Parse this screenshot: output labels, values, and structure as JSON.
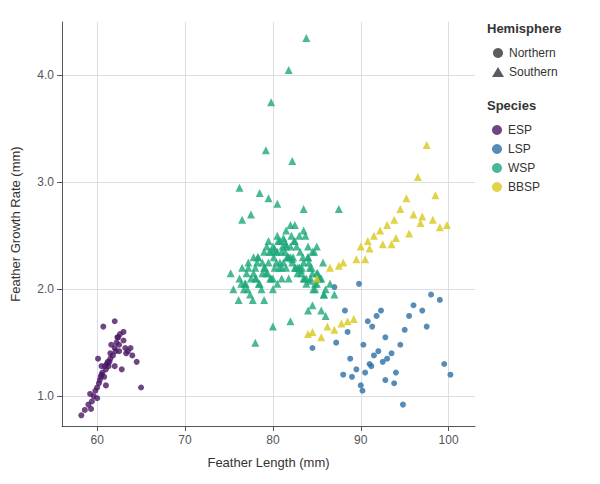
{
  "chart_data": {
    "type": "scatter",
    "xlabel": "Feather Length (mm)",
    "ylabel": "Feather Growth Rate (mm)",
    "xlim": [
      56,
      103
    ],
    "ylim": [
      0.72,
      4.5
    ],
    "xticks": [
      60,
      70,
      80,
      90,
      100
    ],
    "yticks": [
      {
        "value": 1.0,
        "label": "1.0"
      },
      {
        "value": 2.0,
        "label": "2.0"
      },
      {
        "value": 3.0,
        "label": "3.0"
      },
      {
        "value": 4.0,
        "label": "4.0"
      }
    ],
    "grid": true,
    "legend": "right",
    "legend_sections": [
      {
        "title": "Hemisphere",
        "entries": [
          {
            "name": "Northern",
            "marker": "circle",
            "color": "#333333"
          },
          {
            "name": "Southern",
            "marker": "triangle",
            "color": "#333333"
          }
        ]
      },
      {
        "title": "Species",
        "marker": "circle"
      }
    ],
    "series": [
      {
        "name": "ESP",
        "color": "#4b1664",
        "marker": "circle",
        "x": [
          58.2,
          58.6,
          59.0,
          59.2,
          59.4,
          59.6,
          59.8,
          60.0,
          60.0,
          60.2,
          60.3,
          60.5,
          60.5,
          60.6,
          60.8,
          61.0,
          61.0,
          61.1,
          61.2,
          61.3,
          61.5,
          61.5,
          61.6,
          61.8,
          62.0,
          62.0,
          62.1,
          62.2,
          62.3,
          62.5,
          62.5,
          62.6,
          62.8,
          63.0,
          63.0,
          63.2,
          63.5,
          64.0,
          64.5,
          65.0,
          59.3,
          60.1,
          60.4,
          60.7,
          60.9,
          61.4,
          62.0,
          62.4,
          63.3,
          63.8
        ],
        "y": [
          0.82,
          0.87,
          0.92,
          1.02,
          0.95,
          1.0,
          1.05,
          1.08,
          0.98,
          1.12,
          1.15,
          1.28,
          1.2,
          1.22,
          1.18,
          1.25,
          1.1,
          1.3,
          1.32,
          1.28,
          1.35,
          1.4,
          1.48,
          1.38,
          1.28,
          1.45,
          1.42,
          1.5,
          1.55,
          1.42,
          1.48,
          1.58,
          1.25,
          1.6,
          1.52,
          1.45,
          1.42,
          1.38,
          1.32,
          1.08,
          0.88,
          1.35,
          1.18,
          1.65,
          1.28,
          1.32,
          1.7,
          1.55,
          1.4,
          1.45
        ]
      },
      {
        "name": "LSP",
        "color": "#2d6fa5",
        "marker": "circle",
        "x": [
          84.5,
          87.2,
          88.0,
          88.5,
          88.8,
          89.0,
          89.5,
          90.0,
          90.2,
          90.5,
          90.8,
          91.0,
          91.2,
          91.5,
          91.8,
          92.0,
          92.3,
          92.5,
          92.8,
          93.0,
          93.5,
          94.0,
          94.5,
          95.0,
          95.5,
          96.0,
          97.0,
          97.5,
          98.0,
          99.0,
          99.5,
          100.2,
          91.3,
          90.3,
          89.8,
          92.8,
          93.8,
          94.8,
          87.0,
          88.2
        ],
        "y": [
          1.45,
          1.5,
          1.2,
          1.6,
          1.35,
          1.18,
          1.25,
          1.1,
          1.05,
          1.22,
          1.7,
          1.3,
          1.28,
          1.38,
          1.75,
          1.42,
          1.8,
          1.32,
          1.55,
          1.35,
          1.4,
          1.22,
          1.48,
          1.62,
          1.75,
          1.85,
          1.8,
          1.65,
          1.95,
          1.9,
          1.3,
          1.2,
          1.65,
          1.48,
          2.05,
          1.15,
          1.12,
          0.92,
          2.02,
          1.8
        ]
      },
      {
        "name": "WSP",
        "color": "#1ba87a",
        "marker": "triangle",
        "x": [
          76.5,
          77.0,
          77.2,
          77.5,
          77.8,
          78.0,
          78.0,
          78.2,
          78.5,
          78.8,
          79.0,
          79.0,
          79.2,
          79.5,
          79.8,
          80.0,
          80.0,
          80.2,
          80.5,
          80.5,
          80.8,
          81.0,
          81.0,
          81.2,
          81.5,
          81.5,
          81.8,
          82.0,
          82.0,
          82.2,
          82.5,
          82.5,
          82.8,
          83.0,
          83.0,
          83.2,
          83.5,
          83.5,
          83.8,
          84.0,
          84.0,
          84.2,
          84.5,
          84.5,
          84.8,
          85.0,
          85.0,
          85.2,
          85.5,
          85.8,
          86.0,
          86.5,
          87.0,
          78.3,
          79.3,
          80.3,
          81.3,
          82.3,
          83.3,
          84.3,
          76.8,
          77.8,
          78.8,
          79.8,
          80.8,
          81.8,
          82.8,
          83.8,
          84.8,
          85.8,
          75.5,
          76.2,
          77.2,
          78.3,
          79.6,
          80.6,
          81.6,
          82.6,
          83.6,
          84.6,
          76.1,
          77.1,
          78.1,
          79.1,
          80.1,
          81.1,
          82.1,
          83.1,
          84.1,
          85.1,
          76.4,
          77.4,
          78.4,
          79.4,
          80.4,
          81.4,
          82.4,
          83.4,
          84.4,
          85.4,
          76.7,
          77.7,
          78.7,
          79.7,
          80.7,
          81.7,
          82.7,
          83.7,
          84.7,
          85.7,
          75.2,
          76.9,
          79.0,
          80.0,
          81.0,
          83.0,
          84.0,
          85.0,
          86.0,
          87.5,
          80.5,
          79.5,
          78.5,
          77.5,
          76.5,
          83.5,
          82.5,
          81.5,
          84.5,
          85.5,
          79.8,
          81.8,
          83.8,
          76.2,
          79.2,
          82.2,
          78.0,
          80.0,
          82.0,
          84.0,
          80.5,
          82.0,
          83.5,
          79.5,
          81.5,
          80.2,
          81.2,
          82.2,
          83.2,
          84.2
        ],
        "y": [
          2.2,
          2.15,
          2.25,
          2.1,
          2.3,
          2.1,
          2.2,
          2.25,
          2.05,
          2.15,
          2.2,
          2.35,
          2.15,
          2.25,
          2.1,
          2.4,
          2.1,
          2.2,
          2.05,
          2.35,
          2.25,
          2.2,
          2.35,
          2.25,
          2.4,
          2.2,
          2.1,
          2.4,
          2.3,
          2.25,
          2.45,
          2.2,
          2.15,
          2.5,
          2.2,
          2.15,
          2.25,
          2.1,
          2.05,
          2.4,
          2.3,
          2.2,
          2.35,
          2.15,
          2.05,
          2.15,
          2.05,
          2.1,
          2.1,
          1.95,
          2.0,
          2.05,
          1.95,
          2.3,
          2.4,
          2.35,
          2.45,
          2.3,
          2.2,
          2.1,
          2.05,
          2.15,
          2.25,
          2.35,
          2.45,
          2.3,
          2.2,
          2.1,
          2.0,
          1.95,
          2.0,
          2.1,
          2.2,
          2.3,
          2.35,
          2.45,
          2.3,
          2.2,
          2.1,
          2.0,
          1.9,
          2.0,
          2.1,
          2.2,
          2.3,
          2.4,
          2.5,
          2.35,
          2.25,
          2.15,
          2.05,
          1.95,
          2.05,
          2.15,
          2.25,
          2.35,
          2.45,
          2.3,
          2.2,
          2.1,
          2.0,
          1.9,
          2.0,
          2.1,
          2.2,
          2.3,
          2.4,
          2.5,
          2.35,
          2.25,
          2.15,
          2.05,
          1.9,
          2.0,
          2.1,
          2.2,
          2.3,
          2.4,
          1.75,
          2.75,
          2.8,
          2.85,
          2.9,
          2.7,
          2.65,
          2.75,
          2.6,
          2.55,
          1.85,
          1.8,
          3.75,
          4.05,
          4.35,
          2.95,
          3.3,
          3.2,
          1.5,
          1.65,
          1.7,
          1.8,
          2.5,
          2.6,
          2.55,
          2.45,
          2.42,
          2.38,
          2.48,
          2.28,
          2.18,
          2.08
        ]
      },
      {
        "name": "BBSP",
        "color": "#d9c819",
        "marker": "triangle",
        "x": [
          84.5,
          85.5,
          86.2,
          87.0,
          87.8,
          88.5,
          89.2,
          90.0,
          90.8,
          91.5,
          92.2,
          93.0,
          93.8,
          94.5,
          95.2,
          96.0,
          96.8,
          97.5,
          98.2,
          99.0,
          99.8,
          84.0,
          86.5,
          88.0,
          89.5,
          91.0,
          92.5,
          94.0,
          95.5,
          97.0,
          98.5,
          85.0,
          87.5,
          90.5,
          93.5,
          96.5
        ],
        "y": [
          1.6,
          1.55,
          1.65,
          1.62,
          1.68,
          1.7,
          1.72,
          2.4,
          2.45,
          2.5,
          2.55,
          2.6,
          2.65,
          2.75,
          2.85,
          2.7,
          2.62,
          3.35,
          2.65,
          2.58,
          2.6,
          1.58,
          2.2,
          2.25,
          2.28,
          2.38,
          2.42,
          2.48,
          2.52,
          2.68,
          2.88,
          2.1,
          2.22,
          2.28,
          2.42,
          3.05
        ]
      }
    ]
  }
}
